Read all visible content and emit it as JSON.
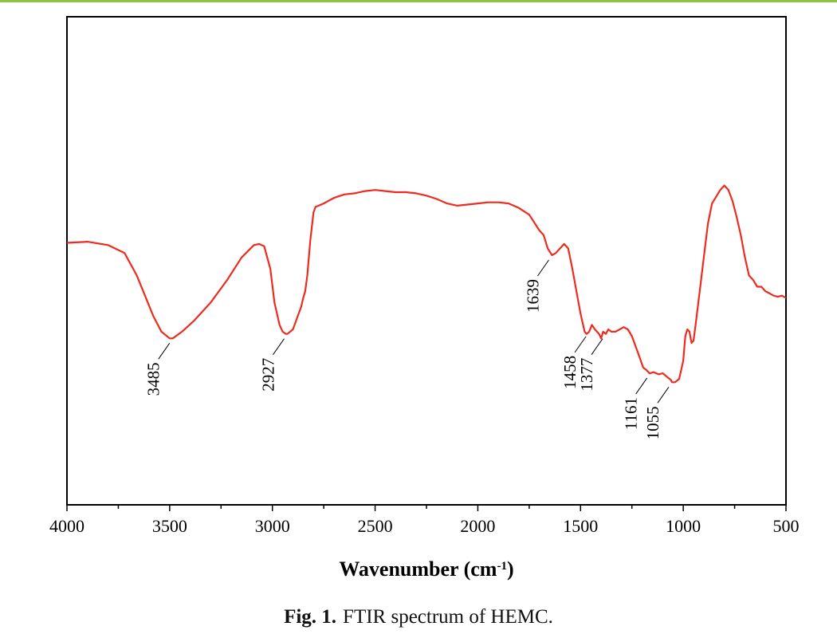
{
  "caption": {
    "label": "Fig. 1.",
    "text": "FTIR spectrum of HEMC."
  },
  "colors": {
    "line": "#ee2b1f",
    "axis": "#000000",
    "top_rule": "#8cc63f"
  },
  "chart_data": {
    "type": "line",
    "title": "",
    "xlabel": "Wavenumber (cm",
    "xlabel_sup": "-1",
    "xlabel_tail": ")",
    "ylabel": "",
    "xlim": [
      4000,
      500
    ],
    "ylim": [
      0,
      100
    ],
    "x_reversed": true,
    "grid": false,
    "legend": "none",
    "x_ticks": [
      "4000",
      "3500",
      "3000",
      "2500",
      "2000",
      "1500",
      "1000",
      "500"
    ],
    "series": [
      {
        "x": [
          4000,
          3900,
          3800,
          3720,
          3660,
          3620,
          3580,
          3540,
          3500,
          3485,
          3440,
          3380,
          3300,
          3220,
          3150,
          3090,
          3065,
          3040,
          3010,
          2990,
          2965,
          2950,
          2935,
          2927,
          2900,
          2880,
          2860,
          2850,
          2840,
          2830,
          2815,
          2800,
          2790,
          2775,
          2750,
          2700,
          2650,
          2600,
          2550,
          2500,
          2450,
          2400,
          2350,
          2300,
          2250,
          2200,
          2150,
          2100,
          2050,
          2000,
          1950,
          1900,
          1850,
          1800,
          1750,
          1700,
          1680,
          1660,
          1639,
          1620,
          1600,
          1580,
          1560,
          1540,
          1520,
          1500,
          1480,
          1470,
          1458,
          1445,
          1430,
          1420,
          1410,
          1400,
          1390,
          1377,
          1365,
          1350,
          1330,
          1310,
          1290,
          1270,
          1250,
          1230,
          1210,
          1195,
          1180,
          1165,
          1161,
          1145,
          1120,
          1100,
          1080,
          1060,
          1055,
          1040,
          1020,
          1000,
          990,
          980,
          970,
          960,
          950,
          940,
          920,
          900,
          880,
          860,
          840,
          820,
          800,
          780,
          760,
          740,
          720,
          700,
          680,
          660,
          640,
          620,
          600,
          580,
          560,
          540,
          520,
          500
        ],
        "y": [
          66.5,
          67,
          65.5,
          62,
          52,
          43,
          34,
          27,
          24,
          24,
          27,
          32,
          40,
          50,
          60,
          65.5,
          66,
          65,
          55,
          40,
          30,
          27,
          26,
          26,
          28,
          33,
          38,
          42,
          45,
          52,
          68,
          80,
          82.5,
          83,
          84,
          86.5,
          88,
          88.5,
          89.5,
          90,
          89.5,
          89,
          89,
          88.5,
          87.5,
          86,
          84,
          83,
          83.5,
          84,
          84.5,
          84.5,
          84,
          82,
          79,
          72,
          70,
          64,
          61,
          62,
          64,
          66,
          64,
          55,
          45,
          35,
          27,
          26,
          27,
          30,
          28,
          27,
          26,
          24,
          27,
          26,
          28,
          27,
          27,
          28,
          29,
          28,
          25,
          20,
          15,
          11,
          10,
          8.5,
          8.5,
          9,
          8,
          8.5,
          7,
          5.5,
          4.5,
          4.5,
          6,
          14,
          25,
          28,
          27,
          22,
          23,
          30,
          45,
          60,
          75,
          84,
          87,
          90,
          92,
          90,
          85,
          78,
          70,
          60,
          52,
          50,
          47,
          47,
          45,
          44,
          43,
          42.5,
          43,
          42
        ],
        "color": "#ee2b1f"
      }
    ],
    "annotations": [
      {
        "label": "3485",
        "x": 3485
      },
      {
        "label": "2927",
        "x": 2927
      },
      {
        "label": "1639",
        "x": 1639
      },
      {
        "label": "1458",
        "x": 1458
      },
      {
        "label": "1377",
        "x": 1377
      },
      {
        "label": "1161",
        "x": 1161
      },
      {
        "label": "1055",
        "x": 1055
      }
    ]
  }
}
